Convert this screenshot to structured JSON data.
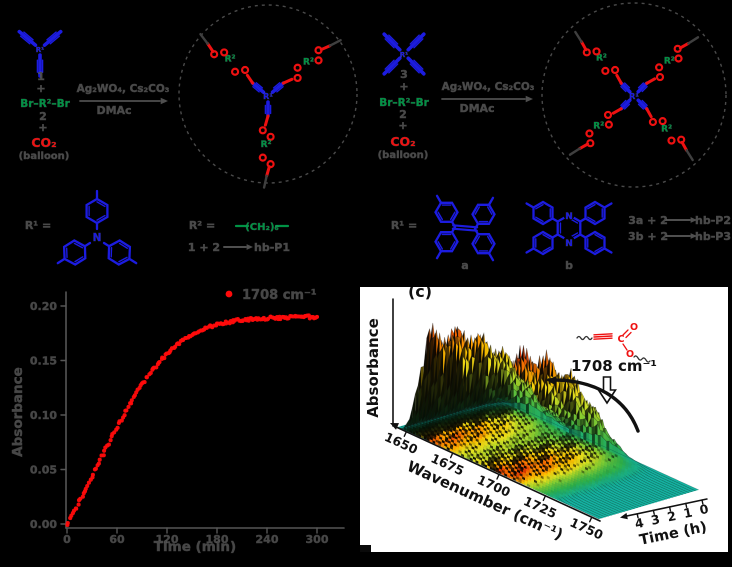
{
  "figure": {
    "background": "#000000",
    "panel_background": "#ffffff"
  },
  "colors": {
    "blue": "#1c1ce0",
    "green": "#009245",
    "red": "#ee1111",
    "scatter_red": "#ff0b0b",
    "dim_text": "#4a4a4a",
    "panel_text": "#111111",
    "floor_teal": "#14b2a0"
  },
  "scheme_left": {
    "core_label": "R¹",
    "monomer_label": "1",
    "plus1": "+",
    "dibromide": "Br–R²–Br",
    "monomer2_label": "2",
    "plus2": "+",
    "co2": "CO₂",
    "balloon": "(balloon)",
    "conditions_line1": "Ag₂WO₄, Cs₂CO₃",
    "conditions_line2": "DMAc"
  },
  "scheme_right": {
    "core_label": "R¹",
    "monomer_label": "3",
    "plus1": "+",
    "dibromide": "Br–R²–Br",
    "monomer2_label": "2",
    "plus2": "+",
    "co2": "CO₂",
    "balloon": "(balloon)",
    "conditions_line1": "Ag₂WO₄, Cs₂CO₃",
    "conditions_line2": "DMAc"
  },
  "network_left": {
    "core_label": "R¹",
    "linker_label": "R²"
  },
  "network_right": {
    "core_label": "R¹",
    "linker_label": "R²"
  },
  "definitions_left": {
    "r1_eq": "R¹ =",
    "amine_n": "N",
    "r2_eq": "R² =",
    "r2_chain": "(CH₂)₆",
    "rxn_lhs": "1 + 2",
    "rxn_rhs": "hb-P1"
  },
  "definitions_right": {
    "r1_eq": "R¹ =",
    "label_a": "a",
    "label_b": "b",
    "pyrazine_n": "N",
    "rxn2_lhs": "3a + 2",
    "rxn2_rhs": "hb-P2",
    "rxn3_lhs": "3b + 2",
    "rxn3_rhs": "hb-P3"
  },
  "kinetics": {
    "legend_label": "1708 cm⁻¹",
    "xlabel": "Time (min)",
    "ylabel": "Absorbance",
    "x_ticks": [
      "0",
      "60",
      "120",
      "180",
      "240",
      "300"
    ],
    "y_ticks": [
      "0.00",
      "0.05",
      "0.10",
      "0.15",
      "0.20"
    ]
  },
  "waterfall": {
    "panel_label": "(c)",
    "ylabel": "Absorbance",
    "xlabel": "Wavenumber (cm⁻¹)",
    "x_ticks": [
      "1650",
      "1675",
      "1700",
      "1725",
      "1750"
    ],
    "time_label": "Time (h)",
    "time_ticks": [
      "4",
      "3",
      "2",
      "1",
      "0"
    ],
    "annotation": "1708 cm⁻¹",
    "ester_atoms": {
      "c": "C",
      "o1": "O",
      "o2": "O"
    }
  },
  "chart_data": [
    {
      "type": "scatter",
      "xlabel": "Time (min)",
      "ylabel": "Absorbance",
      "xlim": [
        0,
        300
      ],
      "ylim": [
        0.0,
        0.2
      ],
      "x_ticks": [
        0,
        60,
        120,
        180,
        240,
        300
      ],
      "y_ticks": [
        0.0,
        0.05,
        0.1,
        0.15,
        0.2
      ],
      "legend_position": "top-right-inside",
      "series": [
        {
          "name": "1708 cm⁻¹",
          "color": "#ff0b0b",
          "marker": "dot",
          "points": [
            [
              0,
              0.0
            ],
            [
              10,
              0.013
            ],
            [
              20,
              0.028
            ],
            [
              30,
              0.044
            ],
            [
              40,
              0.059
            ],
            [
              50,
              0.074
            ],
            [
              60,
              0.089
            ],
            [
              70,
              0.103
            ],
            [
              80,
              0.116
            ],
            [
              90,
              0.128
            ],
            [
              100,
              0.139
            ],
            [
              110,
              0.148
            ],
            [
              120,
              0.156
            ],
            [
              130,
              0.163
            ],
            [
              140,
              0.169
            ],
            [
              150,
              0.174
            ],
            [
              160,
              0.178
            ],
            [
              170,
              0.181
            ],
            [
              180,
              0.183
            ],
            [
              190,
              0.185
            ],
            [
              200,
              0.186
            ],
            [
              210,
              0.187
            ],
            [
              220,
              0.188
            ],
            [
              230,
              0.188
            ],
            [
              240,
              0.189
            ],
            [
              250,
              0.189
            ],
            [
              260,
              0.189
            ],
            [
              270,
              0.19
            ],
            [
              280,
              0.19
            ],
            [
              290,
              0.19
            ],
            [
              300,
              0.19
            ]
          ]
        }
      ]
    },
    {
      "type": "surface_waterfall",
      "xlabel": "Wavenumber (cm⁻¹)",
      "zlabel": "Absorbance",
      "time_label": "Time (h)",
      "x_range": [
        1650,
        1750
      ],
      "time_range_h": [
        0,
        4.7
      ],
      "x_ticks": [
        1650,
        1675,
        1700,
        1725,
        1750
      ],
      "time_ticks": [
        4,
        3,
        2,
        1,
        0
      ],
      "bands": [
        {
          "center": 1668,
          "sigma": 15,
          "amp": 0.92
        },
        {
          "center": 1703,
          "sigma": 14,
          "amp": 1.0
        }
      ],
      "growth_tau_h": 1.6,
      "annotation": "1708 cm⁻¹",
      "description": "Carbonyl band at 1708 cm⁻¹ grows with reaction time"
    }
  ]
}
